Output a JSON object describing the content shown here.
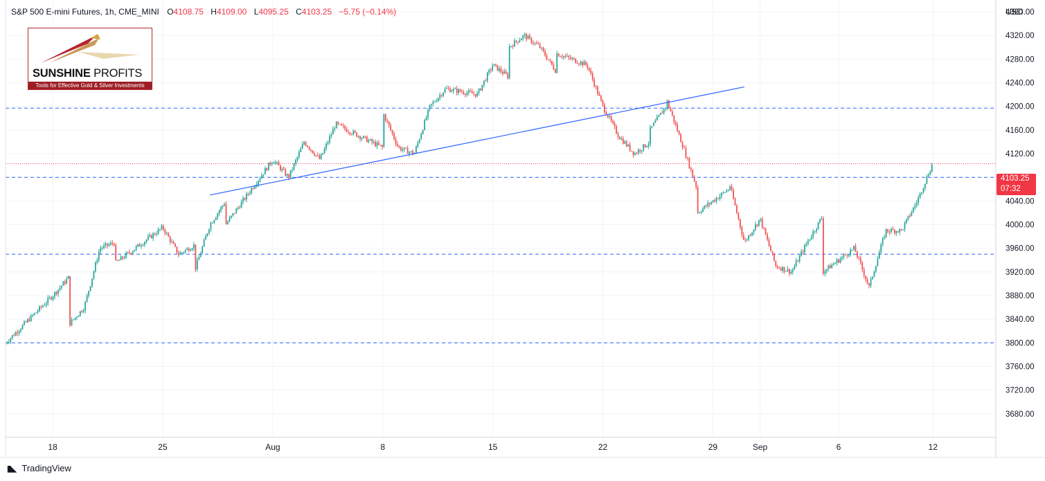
{
  "header": {
    "symbol": "S&P 500 E-mini Futures, 1h, CME_MINI",
    "open_label": "O",
    "open_value": "4108.75",
    "high_label": "H",
    "high_value": "4109.00",
    "low_label": "L",
    "low_value": "4095.25",
    "close_label": "C",
    "close_value": "4103.25",
    "change": "−5.75 (−0.14%)"
  },
  "logo": {
    "brand_bold": "SUNSHINE",
    "brand_light": "PROFITS",
    "tagline": "Tools for Effective Gold & Silver Investments"
  },
  "footer": {
    "brand": "TradingView"
  },
  "price_axis": {
    "currency": "USD"
  },
  "last_price": {
    "value": "4103.25",
    "countdown": "07:32"
  },
  "colors": {
    "up": "#26a69a",
    "down": "#ef5350",
    "levels": "#2962ff",
    "last": "#f23645"
  },
  "chart_data": {
    "type": "candlestick",
    "title": "S&P 500 E-mini Futures, 1h, CME_MINI",
    "ylim": [
      3640,
      4380
    ],
    "y_ticks": [
      3680,
      3720,
      3760,
      3800,
      3840,
      3880,
      3920,
      3960,
      4000,
      4040,
      4080,
      4120,
      4160,
      4200,
      4240,
      4280,
      4320,
      4360
    ],
    "x_ticks": [
      {
        "label": "18",
        "date": "2022-07-18"
      },
      {
        "label": "25",
        "date": "2022-07-25"
      },
      {
        "label": "Aug",
        "date": "2022-08-01"
      },
      {
        "label": "8",
        "date": "2022-08-08"
      },
      {
        "label": "15",
        "date": "2022-08-15"
      },
      {
        "label": "22",
        "date": "2022-08-22"
      },
      {
        "label": "29",
        "date": "2022-08-29"
      },
      {
        "label": "Sep",
        "date": "2022-09-01"
      },
      {
        "label": "6",
        "date": "2022-09-06"
      },
      {
        "label": "12",
        "date": "2022-09-12"
      }
    ],
    "horizontal_levels": [
      4197,
      4080,
      3950,
      3800
    ],
    "trendline": {
      "start": {
        "date": "2022-07-28",
        "price": 4050
      },
      "end": {
        "date": "2022-08-31",
        "price": 4233
      }
    },
    "last_price": 4103.25,
    "price_path": [
      [
        "2022-07-15",
        3800
      ],
      [
        "2022-07-18",
        3880
      ],
      [
        "2022-07-19",
        3910
      ],
      [
        "2022-07-19",
        3830
      ],
      [
        "2022-07-20",
        3860
      ],
      [
        "2022-07-21",
        3960
      ],
      [
        "2022-07-22",
        3970
      ],
      [
        "2022-07-22",
        3935
      ],
      [
        "2022-07-25",
        3995
      ],
      [
        "2022-07-26",
        3950
      ],
      [
        "2022-07-27",
        3965
      ],
      [
        "2022-07-27",
        3920
      ],
      [
        "2022-07-28",
        4000
      ],
      [
        "2022-07-29",
        4040
      ],
      [
        "2022-07-29",
        4000
      ],
      [
        "2022-08-01",
        4110
      ],
      [
        "2022-08-02",
        4080
      ],
      [
        "2022-08-03",
        4140
      ],
      [
        "2022-08-04",
        4110
      ],
      [
        "2022-08-05",
        4170
      ],
      [
        "2022-08-08",
        4130
      ],
      [
        "2022-08-08",
        4190
      ],
      [
        "2022-08-09",
        4130
      ],
      [
        "2022-08-10",
        4120
      ],
      [
        "2022-08-11",
        4200
      ],
      [
        "2022-08-12",
        4230
      ],
      [
        "2022-08-14",
        4220
      ],
      [
        "2022-08-15",
        4270
      ],
      [
        "2022-08-16",
        4250
      ],
      [
        "2022-08-16",
        4300
      ],
      [
        "2022-08-17",
        4320
      ],
      [
        "2022-08-18",
        4300
      ],
      [
        "2022-08-19",
        4260
      ],
      [
        "2022-08-19",
        4290
      ],
      [
        "2022-08-21",
        4270
      ],
      [
        "2022-08-22",
        4200
      ],
      [
        "2022-08-23",
        4150
      ],
      [
        "2022-08-24",
        4120
      ],
      [
        "2022-08-25",
        4140
      ],
      [
        "2022-08-25",
        4160
      ],
      [
        "2022-08-26",
        4200
      ],
      [
        "2022-08-26",
        4215
      ],
      [
        "2022-08-27",
        4140
      ],
      [
        "2022-08-28",
        4060
      ],
      [
        "2022-08-28",
        4020
      ],
      [
        "2022-08-29",
        4040
      ],
      [
        "2022-08-30",
        4060
      ],
      [
        "2022-08-30",
        4075
      ],
      [
        "2022-08-31",
        3970
      ],
      [
        "2022-09-01",
        4010
      ],
      [
        "2022-09-02",
        3930
      ],
      [
        "2022-09-03",
        3920
      ],
      [
        "2022-09-04",
        3970
      ],
      [
        "2022-09-05",
        4015
      ],
      [
        "2022-09-05",
        3920
      ],
      [
        "2022-09-06",
        3940
      ],
      [
        "2022-09-07",
        3960
      ],
      [
        "2022-09-08",
        3890
      ],
      [
        "2022-09-08",
        3900
      ],
      [
        "2022-09-09",
        3990
      ],
      [
        "2022-09-10",
        3990
      ],
      [
        "2022-09-11",
        4040
      ],
      [
        "2022-09-12",
        4105
      ],
      [
        "2022-09-12",
        4103
      ]
    ]
  }
}
